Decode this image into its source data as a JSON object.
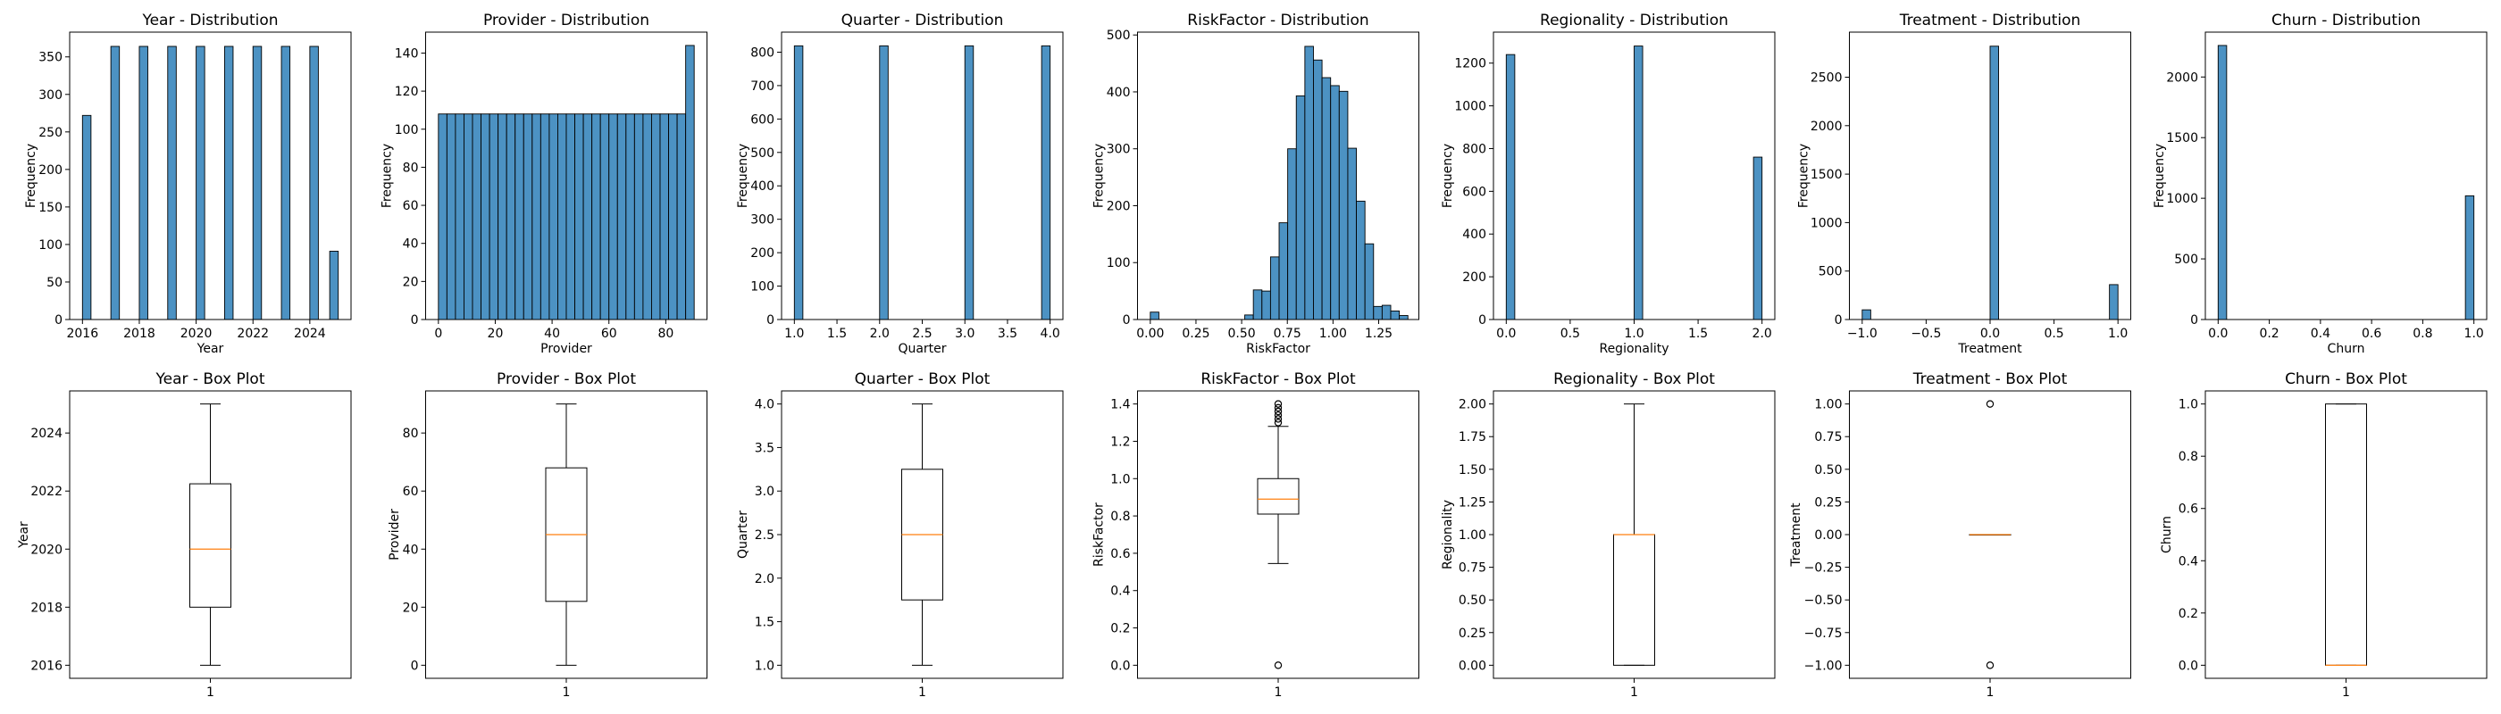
{
  "colors": {
    "bar_fill": "#4c92c3",
    "bar_edge": "#000000",
    "median": "#ff7f0e",
    "box": "#000000"
  },
  "chart_data": [
    {
      "type": "bar",
      "title": "Year - Distribution",
      "xlabel": "Year",
      "ylabel": "Frequency",
      "xlim": [
        2015.55,
        2025.45
      ],
      "ylim": [
        0,
        383
      ],
      "xticks": [
        2016,
        2018,
        2020,
        2022,
        2024
      ],
      "xtick_labels": [
        "2016",
        "2018",
        "2020",
        "2022",
        "2024"
      ],
      "yticks": [
        0,
        50,
        100,
        150,
        200,
        250,
        300,
        350
      ],
      "ytick_labels": [
        "0",
        "50",
        "100",
        "150",
        "200",
        "250",
        "300",
        "350"
      ],
      "bars": [
        {
          "x0": 2016.0,
          "x1": 2016.3,
          "value": 272
        },
        {
          "x0": 2017.0,
          "x1": 2017.3,
          "value": 364
        },
        {
          "x0": 2018.0,
          "x1": 2018.3,
          "value": 364
        },
        {
          "x0": 2019.0,
          "x1": 2019.3,
          "value": 364
        },
        {
          "x0": 2020.0,
          "x1": 2020.3,
          "value": 364
        },
        {
          "x0": 2021.0,
          "x1": 2021.3,
          "value": 364
        },
        {
          "x0": 2022.0,
          "x1": 2022.3,
          "value": 364
        },
        {
          "x0": 2023.0,
          "x1": 2023.3,
          "value": 364
        },
        {
          "x0": 2024.0,
          "x1": 2024.3,
          "value": 364
        },
        {
          "x0": 2024.7,
          "x1": 2025.0,
          "value": 91
        }
      ]
    },
    {
      "type": "bar",
      "title": "Provider - Distribution",
      "xlabel": "Provider",
      "ylabel": "Frequency",
      "xlim": [
        -4.5,
        94.5
      ],
      "ylim": [
        0,
        151
      ],
      "xticks": [
        0,
        20,
        40,
        60,
        80
      ],
      "xtick_labels": [
        "0",
        "20",
        "40",
        "60",
        "80"
      ],
      "yticks": [
        0,
        20,
        40,
        60,
        80,
        100,
        120,
        140
      ],
      "ytick_labels": [
        "0",
        "20",
        "40",
        "60",
        "80",
        "100",
        "120",
        "140"
      ],
      "bars": [
        {
          "x0": 0,
          "x1": 3,
          "value": 108
        },
        {
          "x0": 3,
          "x1": 6,
          "value": 108
        },
        {
          "x0": 6,
          "x1": 9,
          "value": 108
        },
        {
          "x0": 9,
          "x1": 12,
          "value": 108
        },
        {
          "x0": 12,
          "x1": 15,
          "value": 108
        },
        {
          "x0": 15,
          "x1": 18,
          "value": 108
        },
        {
          "x0": 18,
          "x1": 21,
          "value": 108
        },
        {
          "x0": 21,
          "x1": 24,
          "value": 108
        },
        {
          "x0": 24,
          "x1": 27,
          "value": 108
        },
        {
          "x0": 27,
          "x1": 30,
          "value": 108
        },
        {
          "x0": 30,
          "x1": 33,
          "value": 108
        },
        {
          "x0": 33,
          "x1": 36,
          "value": 108
        },
        {
          "x0": 36,
          "x1": 39,
          "value": 108
        },
        {
          "x0": 39,
          "x1": 42,
          "value": 108
        },
        {
          "x0": 42,
          "x1": 45,
          "value": 108
        },
        {
          "x0": 45,
          "x1": 48,
          "value": 108
        },
        {
          "x0": 48,
          "x1": 51,
          "value": 108
        },
        {
          "x0": 51,
          "x1": 54,
          "value": 108
        },
        {
          "x0": 54,
          "x1": 57,
          "value": 108
        },
        {
          "x0": 57,
          "x1": 60,
          "value": 108
        },
        {
          "x0": 60,
          "x1": 63,
          "value": 108
        },
        {
          "x0": 63,
          "x1": 66,
          "value": 108
        },
        {
          "x0": 66,
          "x1": 69,
          "value": 108
        },
        {
          "x0": 69,
          "x1": 72,
          "value": 108
        },
        {
          "x0": 72,
          "x1": 75,
          "value": 108
        },
        {
          "x0": 75,
          "x1": 78,
          "value": 108
        },
        {
          "x0": 78,
          "x1": 81,
          "value": 108
        },
        {
          "x0": 81,
          "x1": 84,
          "value": 108
        },
        {
          "x0": 84,
          "x1": 87,
          "value": 108
        },
        {
          "x0": 87,
          "x1": 90,
          "value": 144
        }
      ]
    },
    {
      "type": "bar",
      "title": "Quarter - Distribution",
      "xlabel": "Quarter",
      "ylabel": "Frequency",
      "xlim": [
        0.85,
        4.15
      ],
      "ylim": [
        0,
        860
      ],
      "xticks": [
        1.0,
        1.5,
        2.0,
        2.5,
        3.0,
        3.5,
        4.0
      ],
      "xtick_labels": [
        "1.0",
        "1.5",
        "2.0",
        "2.5",
        "3.0",
        "3.5",
        "4.0"
      ],
      "yticks": [
        0,
        100,
        200,
        300,
        400,
        500,
        600,
        700,
        800
      ],
      "ytick_labels": [
        "0",
        "100",
        "200",
        "300",
        "400",
        "500",
        "600",
        "700",
        "800"
      ],
      "bars": [
        {
          "x0": 1.0,
          "x1": 1.1,
          "value": 819
        },
        {
          "x0": 2.0,
          "x1": 2.1,
          "value": 819
        },
        {
          "x0": 3.0,
          "x1": 3.1,
          "value": 819
        },
        {
          "x0": 3.9,
          "x1": 4.0,
          "value": 819
        }
      ]
    },
    {
      "type": "bar",
      "title": "RiskFactor - Distribution",
      "xlabel": "RiskFactor",
      "ylabel": "Frequency",
      "xlim": [
        -0.07,
        1.47
      ],
      "ylim": [
        0,
        505
      ],
      "xticks": [
        0.0,
        0.25,
        0.5,
        0.75,
        1.0,
        1.25
      ],
      "xtick_labels": [
        "0.00",
        "0.25",
        "0.50",
        "0.75",
        "1.00",
        "1.25"
      ],
      "yticks": [
        0,
        100,
        200,
        300,
        400,
        500
      ],
      "ytick_labels": [
        "0",
        "100",
        "200",
        "300",
        "400",
        "500"
      ],
      "bars": [
        {
          "x0": 0.0,
          "x1": 0.047,
          "value": 13
        },
        {
          "x0": 0.047,
          "x1": 0.094,
          "value": 0
        },
        {
          "x0": 0.094,
          "x1": 0.141,
          "value": 0
        },
        {
          "x0": 0.141,
          "x1": 0.188,
          "value": 0
        },
        {
          "x0": 0.188,
          "x1": 0.235,
          "value": 0
        },
        {
          "x0": 0.235,
          "x1": 0.282,
          "value": 0
        },
        {
          "x0": 0.282,
          "x1": 0.329,
          "value": 0
        },
        {
          "x0": 0.329,
          "x1": 0.376,
          "value": 0
        },
        {
          "x0": 0.376,
          "x1": 0.423,
          "value": 0
        },
        {
          "x0": 0.423,
          "x1": 0.47,
          "value": 0
        },
        {
          "x0": 0.47,
          "x1": 0.517,
          "value": 0
        },
        {
          "x0": 0.517,
          "x1": 0.564,
          "value": 8
        },
        {
          "x0": 0.564,
          "x1": 0.611,
          "value": 52
        },
        {
          "x0": 0.611,
          "x1": 0.658,
          "value": 50
        },
        {
          "x0": 0.658,
          "x1": 0.705,
          "value": 110
        },
        {
          "x0": 0.705,
          "x1": 0.752,
          "value": 170
        },
        {
          "x0": 0.752,
          "x1": 0.799,
          "value": 300
        },
        {
          "x0": 0.799,
          "x1": 0.846,
          "value": 393
        },
        {
          "x0": 0.846,
          "x1": 0.893,
          "value": 480
        },
        {
          "x0": 0.893,
          "x1": 0.94,
          "value": 456
        },
        {
          "x0": 0.94,
          "x1": 0.987,
          "value": 425
        },
        {
          "x0": 0.987,
          "x1": 1.034,
          "value": 411
        },
        {
          "x0": 1.034,
          "x1": 1.081,
          "value": 401
        },
        {
          "x0": 1.081,
          "x1": 1.128,
          "value": 301
        },
        {
          "x0": 1.128,
          "x1": 1.175,
          "value": 208
        },
        {
          "x0": 1.175,
          "x1": 1.222,
          "value": 133
        },
        {
          "x0": 1.222,
          "x1": 1.269,
          "value": 23
        },
        {
          "x0": 1.269,
          "x1": 1.316,
          "value": 25
        },
        {
          "x0": 1.316,
          "x1": 1.363,
          "value": 15
        },
        {
          "x0": 1.363,
          "x1": 1.41,
          "value": 7
        }
      ]
    },
    {
      "type": "bar",
      "title": "Regionality - Distribution",
      "xlabel": "Regionality",
      "ylabel": "Frequency",
      "xlim": [
        -0.1,
        2.1
      ],
      "ylim": [
        0,
        1345
      ],
      "xticks": [
        0.0,
        0.5,
        1.0,
        1.5,
        2.0
      ],
      "xtick_labels": [
        "0.0",
        "0.5",
        "1.0",
        "1.5",
        "2.0"
      ],
      "yticks": [
        0,
        200,
        400,
        600,
        800,
        1000,
        1200
      ],
      "ytick_labels": [
        "0",
        "200",
        "400",
        "600",
        "800",
        "1000",
        "1200"
      ],
      "bars": [
        {
          "x0": 0.0,
          "x1": 0.0667,
          "value": 1240
        },
        {
          "x0": 1.0,
          "x1": 1.0667,
          "value": 1280
        },
        {
          "x0": 1.9333,
          "x1": 2.0,
          "value": 760
        }
      ]
    },
    {
      "type": "bar",
      "title": "Treatment - Distribution",
      "xlabel": "Treatment",
      "ylabel": "Frequency",
      "xlim": [
        -1.1,
        1.1
      ],
      "ylim": [
        0,
        2965
      ],
      "xticks": [
        -1.0,
        -0.5,
        0.0,
        0.5,
        1.0
      ],
      "xtick_labels": [
        "−1.0",
        "−0.5",
        "0.0",
        "0.5",
        "1.0"
      ],
      "yticks": [
        0,
        500,
        1000,
        1500,
        2000,
        2500
      ],
      "ytick_labels": [
        "0",
        "500",
        "1000",
        "1500",
        "2000",
        "2500"
      ],
      "bars": [
        {
          "x0": -1.0,
          "x1": -0.9333,
          "value": 100
        },
        {
          "x0": 0.0,
          "x1": 0.0667,
          "value": 2820
        },
        {
          "x0": 0.9333,
          "x1": 1.0,
          "value": 360
        }
      ]
    },
    {
      "type": "bar",
      "title": "Churn - Distribution",
      "xlabel": "Churn",
      "ylabel": "Frequency",
      "xlim": [
        -0.05,
        1.05
      ],
      "ylim": [
        0,
        2370
      ],
      "xticks": [
        0.0,
        0.2,
        0.4,
        0.6,
        0.8,
        1.0
      ],
      "xtick_labels": [
        "0.0",
        "0.2",
        "0.4",
        "0.6",
        "0.8",
        "1.0"
      ],
      "yticks": [
        0,
        500,
        1000,
        1500,
        2000
      ],
      "ytick_labels": [
        "0",
        "500",
        "1000",
        "1500",
        "2000"
      ],
      "bars": [
        {
          "x0": 0.0,
          "x1": 0.0333,
          "value": 2260
        },
        {
          "x0": 0.9667,
          "x1": 1.0,
          "value": 1020
        }
      ]
    },
    {
      "type": "box",
      "title": "Year - Box Plot",
      "ylabel": "Year",
      "xlabel": "",
      "category": "1",
      "ylim": [
        2015.55,
        2025.45
      ],
      "yticks": [
        2016,
        2018,
        2020,
        2022,
        2024
      ],
      "ytick_labels": [
        "2016",
        "2018",
        "2020",
        "2022",
        "2024"
      ],
      "stats": {
        "whisker_low": 2016,
        "q1": 2018,
        "median": 2020,
        "q3": 2022.25,
        "whisker_high": 2025
      },
      "outliers": []
    },
    {
      "type": "box",
      "title": "Provider - Box Plot",
      "ylabel": "Provider",
      "xlabel": "",
      "category": "1",
      "ylim": [
        -4.5,
        94.5
      ],
      "yticks": [
        0,
        20,
        40,
        60,
        80
      ],
      "ytick_labels": [
        "0",
        "20",
        "40",
        "60",
        "80"
      ],
      "stats": {
        "whisker_low": 0,
        "q1": 22,
        "median": 45,
        "q3": 68,
        "whisker_high": 90
      },
      "outliers": []
    },
    {
      "type": "box",
      "title": "Quarter - Box Plot",
      "ylabel": "Quarter",
      "xlabel": "",
      "category": "1",
      "ylim": [
        0.85,
        4.15
      ],
      "yticks": [
        1.0,
        1.5,
        2.0,
        2.5,
        3.0,
        3.5,
        4.0
      ],
      "ytick_labels": [
        "1.0",
        "1.5",
        "2.0",
        "2.5",
        "3.0",
        "3.5",
        "4.0"
      ],
      "stats": {
        "whisker_low": 1.0,
        "q1": 1.75,
        "median": 2.5,
        "q3": 3.25,
        "whisker_high": 4.0
      },
      "outliers": []
    },
    {
      "type": "box",
      "title": "RiskFactor - Box Plot",
      "ylabel": "RiskFactor",
      "xlabel": "",
      "category": "1",
      "ylim": [
        -0.07,
        1.47
      ],
      "yticks": [
        0.0,
        0.2,
        0.4,
        0.6,
        0.8,
        1.0,
        1.2,
        1.4
      ],
      "ytick_labels": [
        "0.0",
        "0.2",
        "0.4",
        "0.6",
        "0.8",
        "1.0",
        "1.2",
        "1.4"
      ],
      "stats": {
        "whisker_low": 0.545,
        "q1": 0.81,
        "median": 0.89,
        "q3": 1.0,
        "whisker_high": 1.28
      },
      "outliers": [
        0.0,
        1.3,
        1.32,
        1.34,
        1.36,
        1.38,
        1.4
      ]
    },
    {
      "type": "box",
      "title": "Regionality - Box Plot",
      "ylabel": "Regionality",
      "xlabel": "",
      "category": "1",
      "ylim": [
        -0.1,
        2.1
      ],
      "yticks": [
        0.0,
        0.25,
        0.5,
        0.75,
        1.0,
        1.25,
        1.5,
        1.75,
        2.0
      ],
      "ytick_labels": [
        "0.00",
        "0.25",
        "0.50",
        "0.75",
        "1.00",
        "1.25",
        "1.50",
        "1.75",
        "2.00"
      ],
      "stats": {
        "whisker_low": 0.0,
        "q1": 0.0,
        "median": 1.0,
        "q3": 1.0,
        "whisker_high": 2.0
      },
      "outliers": []
    },
    {
      "type": "box",
      "title": "Treatment - Box Plot",
      "ylabel": "Treatment",
      "xlabel": "",
      "category": "1",
      "ylim": [
        -1.1,
        1.1
      ],
      "yticks": [
        -1.0,
        -0.75,
        -0.5,
        -0.25,
        0.0,
        0.25,
        0.5,
        0.75,
        1.0
      ],
      "ytick_labels": [
        "−1.00",
        "−0.75",
        "−0.50",
        "−0.25",
        "0.00",
        "0.25",
        "0.50",
        "0.75",
        "1.00"
      ],
      "stats": {
        "whisker_low": 0.0,
        "q1": 0.0,
        "median": 0.0,
        "q3": 0.0,
        "whisker_high": 0.0
      },
      "outliers": [
        -1.0,
        1.0
      ]
    },
    {
      "type": "box",
      "title": "Churn - Box Plot",
      "ylabel": "Churn",
      "xlabel": "",
      "category": "1",
      "ylim": [
        -0.05,
        1.05
      ],
      "yticks": [
        0.0,
        0.2,
        0.4,
        0.6,
        0.8,
        1.0
      ],
      "ytick_labels": [
        "0.0",
        "0.2",
        "0.4",
        "0.6",
        "0.8",
        "1.0"
      ],
      "stats": {
        "whisker_low": 0.0,
        "q1": 0.0,
        "median": 0.0,
        "q3": 1.0,
        "whisker_high": 1.0
      },
      "outliers": []
    }
  ]
}
